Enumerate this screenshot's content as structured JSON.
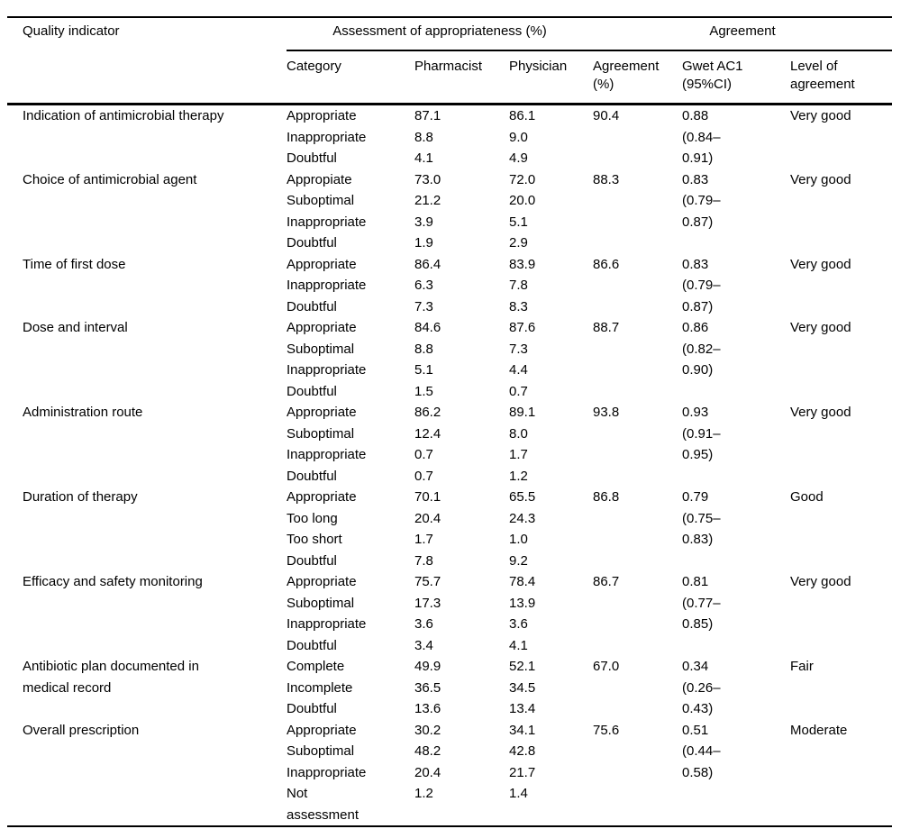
{
  "table": {
    "corner_header": "Quality indicator",
    "group_headers": {
      "assessment": "Assessment of appropriateness (%)",
      "agreement": "Agreement"
    },
    "columns": [
      "Category",
      "Pharmacist",
      "Physician",
      "Agreement\n(%)",
      "Gwet AC1\n(95%CI)",
      "Level of\nagreement"
    ],
    "groups": [
      {
        "indicator": "Indication of antimicrobial therapy",
        "agreement_pct": "90.4",
        "gwet_ac1": "0.88\n(0.84–\n0.91)",
        "level": "Very good",
        "rows": [
          {
            "category": "Appropriate",
            "pharmacist": "87.1",
            "physician": "86.1"
          },
          {
            "category": "Inappropriate",
            "pharmacist": "8.8",
            "physician": "9.0"
          },
          {
            "category": "Doubtful",
            "pharmacist": "4.1",
            "physician": "4.9"
          }
        ]
      },
      {
        "indicator": "Choice of antimicrobial agent",
        "agreement_pct": "88.3",
        "gwet_ac1": "0.83\n(0.79–\n0.87)",
        "level": "Very good",
        "rows": [
          {
            "category": "Appropiate",
            "pharmacist": "73.0",
            "physician": "72.0"
          },
          {
            "category": "Suboptimal",
            "pharmacist": "21.2",
            "physician": "20.0"
          },
          {
            "category": "Inappropriate",
            "pharmacist": "3.9",
            "physician": "5.1"
          },
          {
            "category": "Doubtful",
            "pharmacist": "1.9",
            "physician": "2.9"
          }
        ]
      },
      {
        "indicator": "Time of first dose",
        "agreement_pct": "86.6",
        "gwet_ac1": "0.83\n(0.79–\n0.87)",
        "level": "Very good",
        "rows": [
          {
            "category": "Appropriate",
            "pharmacist": "86.4",
            "physician": "83.9"
          },
          {
            "category": "Inappropriate",
            "pharmacist": "6.3",
            "physician": "7.8"
          },
          {
            "category": "Doubtful",
            "pharmacist": "7.3",
            "physician": "8.3"
          }
        ]
      },
      {
        "indicator": "Dose and interval",
        "agreement_pct": "88.7",
        "gwet_ac1": "0.86\n(0.82–\n0.90)",
        "level": "Very good",
        "rows": [
          {
            "category": "Appropriate",
            "pharmacist": "84.6",
            "physician": "87.6"
          },
          {
            "category": "Suboptimal",
            "pharmacist": "8.8",
            "physician": "7.3"
          },
          {
            "category": "Inappropriate",
            "pharmacist": "5.1",
            "physician": "4.4"
          },
          {
            "category": "Doubtful",
            "pharmacist": "1.5",
            "physician": "0.7"
          }
        ]
      },
      {
        "indicator": "Administration route",
        "agreement_pct": "93.8",
        "gwet_ac1": "0.93\n(0.91–\n0.95)",
        "level": "Very good",
        "rows": [
          {
            "category": "Appropriate",
            "pharmacist": "86.2",
            "physician": "89.1"
          },
          {
            "category": "Suboptimal",
            "pharmacist": "12.4",
            "physician": "8.0"
          },
          {
            "category": "Inappropriate",
            "pharmacist": "0.7",
            "physician": "1.7"
          },
          {
            "category": "Doubtful",
            "pharmacist": "0.7",
            "physician": "1.2"
          }
        ]
      },
      {
        "indicator": "Duration of therapy",
        "agreement_pct": "86.8",
        "gwet_ac1": "0.79\n(0.75–\n0.83)",
        "level": "Good",
        "rows": [
          {
            "category": "Appropriate",
            "pharmacist": "70.1",
            "physician": "65.5"
          },
          {
            "category": "Too long",
            "pharmacist": "20.4",
            "physician": "24.3"
          },
          {
            "category": "Too short",
            "pharmacist": "1.7",
            "physician": "1.0"
          },
          {
            "category": "Doubtful",
            "pharmacist": "7.8",
            "physician": "9.2"
          }
        ]
      },
      {
        "indicator": "Efficacy and safety monitoring",
        "agreement_pct": "86.7",
        "gwet_ac1": "0.81\n(0.77–\n0.85)",
        "level": "Very good",
        "rows": [
          {
            "category": "Appropriate",
            "pharmacist": "75.7",
            "physician": "78.4"
          },
          {
            "category": "Suboptimal",
            "pharmacist": "17.3",
            "physician": "13.9"
          },
          {
            "category": "Inappropriate",
            "pharmacist": "3.6",
            "physician": "3.6"
          },
          {
            "category": "Doubtful",
            "pharmacist": "3.4",
            "physician": "4.1"
          }
        ]
      },
      {
        "indicator": "Antibiotic plan documented in\nmedical record",
        "agreement_pct": "67.0",
        "gwet_ac1": "0.34\n(0.26–\n0.43)",
        "level": "Fair",
        "rows": [
          {
            "category": "Complete",
            "pharmacist": "49.9",
            "physician": "52.1"
          },
          {
            "category": "Incomplete",
            "pharmacist": "36.5",
            "physician": "34.5"
          },
          {
            "category": "Doubtful",
            "pharmacist": "13.6",
            "physician": "13.4"
          }
        ]
      },
      {
        "indicator": "Overall prescription",
        "agreement_pct": "75.6",
        "gwet_ac1": "0.51\n(0.44–\n0.58)",
        "level": "Moderate",
        "rows": [
          {
            "category": "Appropriate",
            "pharmacist": "30.2",
            "physician": "34.1"
          },
          {
            "category": "Suboptimal",
            "pharmacist": "48.2",
            "physician": "42.8"
          },
          {
            "category": "Inappropriate",
            "pharmacist": "20.4",
            "physician": "21.7"
          },
          {
            "category": "Not\nassessment",
            "pharmacist": "1.2",
            "physician": "1.4"
          }
        ]
      }
    ]
  }
}
